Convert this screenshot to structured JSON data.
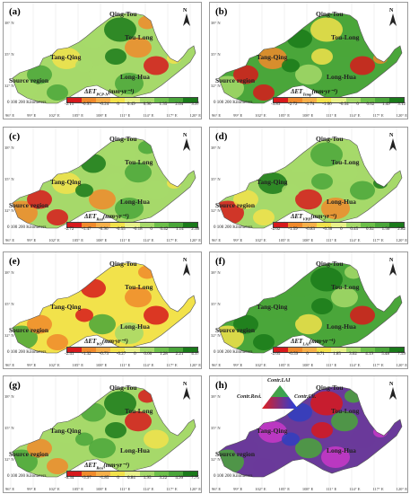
{
  "panels": [
    {
      "id": "a",
      "label": "(a)",
      "var": "ΔET",
      "sub": "PCP-N",
      "unit": "(mm·yr⁻¹)",
      "ticks": [
        "-2.11",
        "-0.93",
        "-0.24",
        "0",
        "0.49",
        "0.90",
        "1.35",
        "2.04",
        "3.37"
      ],
      "scheme": "div1"
    },
    {
      "id": "b",
      "label": "(b)",
      "var": "ΔET",
      "sub": "Temp",
      "unit": "(mm·yr⁻¹)",
      "ticks": [
        "-3.83",
        "-2.72",
        "-1.74",
        "-1.06",
        "-0.54",
        "0",
        "0.62",
        "1.49",
        "3.12"
      ],
      "scheme": "div2"
    },
    {
      "id": "c",
      "label": "(c)",
      "var": "ΔET",
      "sub": "Rad",
      "unit": "(mm·yr⁻¹)",
      "ticks": [
        "-2.72",
        "-1.47",
        "-0.96",
        "-0.55",
        "-0.18",
        "0",
        "0.42",
        "1.14",
        "2.38"
      ],
      "scheme": "div3"
    },
    {
      "id": "d",
      "label": "(d)",
      "var": "ΔET",
      "sub": "VPD",
      "unit": "(mm·yr⁻¹)",
      "ticks": [
        "-2.62",
        "-1.59",
        "-0.83",
        "-0.30",
        "0",
        "0.45",
        "0.92",
        "1.56",
        "2.82"
      ],
      "scheme": "div3"
    },
    {
      "id": "e",
      "label": "(e)",
      "var": "ΔET",
      "sub": "WS",
      "unit": "(mm·yr⁻¹)",
      "ticks": [
        "-2.41",
        "-1.32",
        "-0.73",
        "-0.27",
        "0",
        "0.66",
        "1.28",
        "2.21",
        "4.17"
      ],
      "scheme": "div4"
    },
    {
      "id": "f",
      "label": "(f)",
      "var": "ΔET",
      "sub": "LAI",
      "unit": "(mm·yr⁻¹)",
      "ticks": [
        "-2.05",
        "-0.59",
        "0",
        "0.71",
        "1.85",
        "3.02",
        "4.19",
        "5.48",
        "7.59"
      ],
      "scheme": "div5"
    },
    {
      "id": "g",
      "label": "(g)",
      "var": "ΔET",
      "sub": "Resi",
      "unit": "(mm·yr⁻¹)",
      "ticks": [
        "-6.34",
        "-3.97",
        "-1.85",
        "0",
        "0.84",
        "1.95",
        "3.22",
        "4.99",
        "7.75"
      ],
      "scheme": "div6"
    },
    {
      "id": "h",
      "label": "(h)",
      "var": "",
      "sub": "",
      "unit": "",
      "ticks": [],
      "scheme": "rgb"
    }
  ],
  "regions": {
    "qt": "Qing-Tou",
    "tl": "Tou-Long",
    "tq": "Tang-Qing",
    "lh": "Long-Hua",
    "sr": "Source region"
  },
  "scalebar": {
    "text": "0  100 200 Kilometers"
  },
  "north": "N",
  "lon_ticks": [
    "96° E",
    "99° E",
    "102° E",
    "105° E",
    "108° E",
    "111° E",
    "114° E",
    "117° E",
    "120° E"
  ],
  "lat_ticks": [
    "38° N",
    "35° N",
    "32° N"
  ],
  "legend_h": {
    "top": "Contr.LAI",
    "left": "Contr.Resi.",
    "right": "Contr.Cli."
  },
  "colors": {
    "red": "#d7191c",
    "orange": "#f08a2c",
    "yellow": "#f2e24b",
    "lgreen": "#a6d96a",
    "green": "#4aa63a",
    "dgreen": "#1a7a1a",
    "magenta": "#c838c8",
    "blue": "#3040c0",
    "purple": "#6a3a9a"
  }
}
